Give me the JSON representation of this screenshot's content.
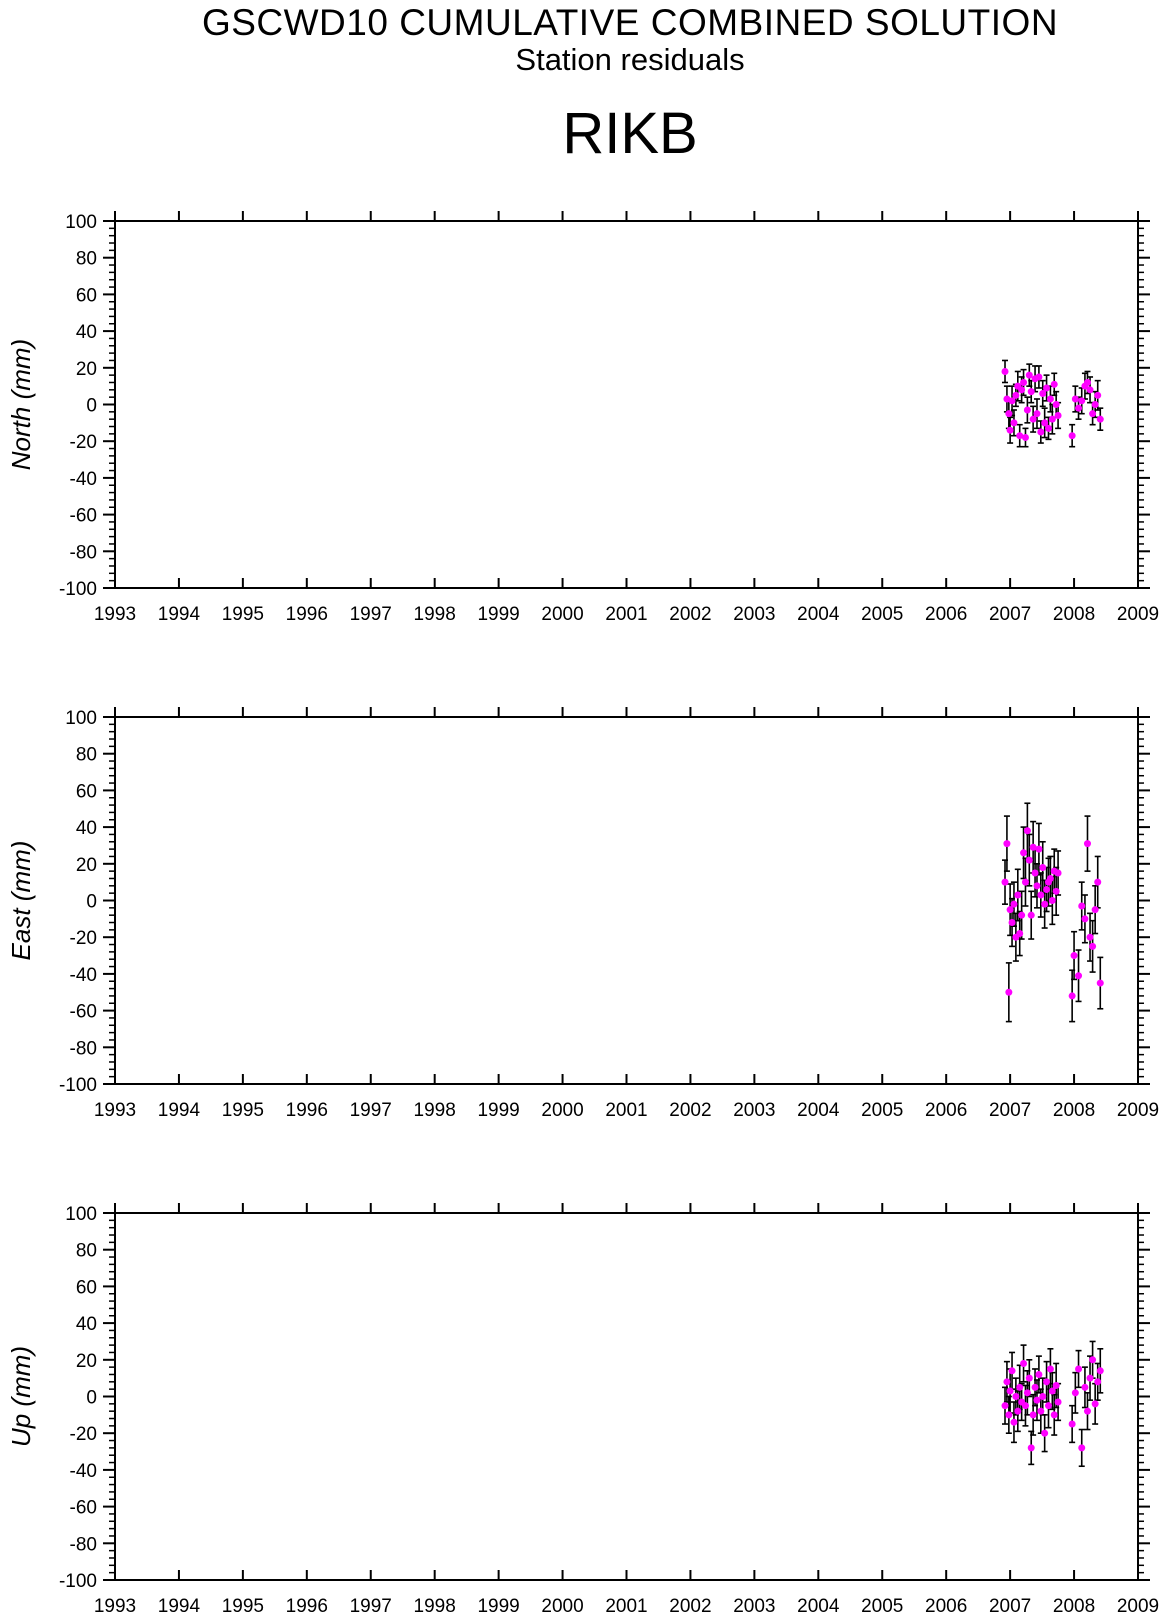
{
  "header": {
    "title": "GSCWD10 CUMULATIVE COMBINED SOLUTION",
    "subtitle": "Station residuals",
    "station": "RIKB"
  },
  "colors": {
    "point": "#ff00ff",
    "errorbar": "#000000",
    "axis": "#000000"
  },
  "chart_data": [
    {
      "type": "scatter",
      "ylabel": "North (mm)",
      "xlim": [
        1993,
        2009
      ],
      "ylim": [
        -100,
        100
      ],
      "x_ticks": [
        "1993",
        "1994",
        "1995",
        "1996",
        "1997",
        "1998",
        "1999",
        "2000",
        "2001",
        "2002",
        "2003",
        "2004",
        "2005",
        "2006",
        "2007",
        "2008",
        "2009"
      ],
      "y_ticks": [
        "100",
        "80",
        "60",
        "40",
        "20",
        "0",
        "-20",
        "-40",
        "-60",
        "-80",
        "-100"
      ],
      "points": [
        [
          2006.92,
          18,
          6
        ],
        [
          2006.95,
          3,
          7
        ],
        [
          2006.98,
          -5,
          8
        ],
        [
          2007.0,
          -14,
          7
        ],
        [
          2007.03,
          2,
          8
        ],
        [
          2007.06,
          -10,
          7
        ],
        [
          2007.09,
          5,
          6
        ],
        [
          2007.12,
          10,
          8
        ],
        [
          2007.15,
          -17,
          6
        ],
        [
          2007.18,
          8,
          7
        ],
        [
          2007.21,
          12,
          7
        ],
        [
          2007.24,
          -18,
          5
        ],
        [
          2007.27,
          -3,
          7
        ],
        [
          2007.3,
          16,
          6
        ],
        [
          2007.33,
          7,
          6
        ],
        [
          2007.36,
          -8,
          7
        ],
        [
          2007.39,
          14,
          7
        ],
        [
          2007.42,
          -5,
          8
        ],
        [
          2007.45,
          15,
          6
        ],
        [
          2007.48,
          -15,
          6
        ],
        [
          2007.51,
          6,
          7
        ],
        [
          2007.54,
          -10,
          8
        ],
        [
          2007.57,
          9,
          7
        ],
        [
          2007.6,
          -13,
          6
        ],
        [
          2007.63,
          3,
          7
        ],
        [
          2007.66,
          -8,
          8
        ],
        [
          2007.69,
          11,
          6
        ],
        [
          2007.72,
          0,
          7
        ],
        [
          2007.75,
          -6,
          7
        ],
        [
          2007.97,
          -17,
          6
        ],
        [
          2008.02,
          3,
          7
        ],
        [
          2008.07,
          -2,
          6
        ],
        [
          2008.12,
          2,
          7
        ],
        [
          2008.17,
          10,
          7
        ],
        [
          2008.21,
          12,
          6
        ],
        [
          2008.25,
          8,
          7
        ],
        [
          2008.29,
          -5,
          6
        ],
        [
          2008.33,
          0,
          7
        ],
        [
          2008.37,
          5,
          8
        ],
        [
          2008.41,
          -8,
          6
        ]
      ]
    },
    {
      "type": "scatter",
      "ylabel": "East (mm)",
      "xlim": [
        1993,
        2009
      ],
      "ylim": [
        -100,
        100
      ],
      "x_ticks": [
        "1993",
        "1994",
        "1995",
        "1996",
        "1997",
        "1998",
        "1999",
        "2000",
        "2001",
        "2002",
        "2003",
        "2004",
        "2005",
        "2006",
        "2007",
        "2008",
        "2009"
      ],
      "y_ticks": [
        "100",
        "80",
        "60",
        "40",
        "20",
        "0",
        "-20",
        "-40",
        "-60",
        "-80",
        "-100"
      ],
      "points": [
        [
          2006.92,
          10,
          12
        ],
        [
          2006.95,
          31,
          15
        ],
        [
          2006.98,
          -50,
          16
        ],
        [
          2007.0,
          -5,
          14
        ],
        [
          2007.03,
          -12,
          13
        ],
        [
          2007.06,
          -2,
          12
        ],
        [
          2007.09,
          -20,
          13
        ],
        [
          2007.12,
          3,
          14
        ],
        [
          2007.15,
          -18,
          12
        ],
        [
          2007.18,
          -8,
          13
        ],
        [
          2007.21,
          26,
          14
        ],
        [
          2007.24,
          10,
          13
        ],
        [
          2007.27,
          38,
          15
        ],
        [
          2007.3,
          22,
          14
        ],
        [
          2007.33,
          -8,
          13
        ],
        [
          2007.36,
          29,
          14
        ],
        [
          2007.39,
          15,
          13
        ],
        [
          2007.42,
          8,
          12
        ],
        [
          2007.45,
          28,
          14
        ],
        [
          2007.48,
          3,
          12
        ],
        [
          2007.51,
          18,
          14
        ],
        [
          2007.54,
          -2,
          13
        ],
        [
          2007.57,
          6,
          12
        ],
        [
          2007.6,
          10,
          13
        ],
        [
          2007.63,
          12,
          12
        ],
        [
          2007.66,
          0,
          13
        ],
        [
          2007.69,
          16,
          12
        ],
        [
          2007.72,
          5,
          13
        ],
        [
          2007.75,
          15,
          12
        ],
        [
          2007.97,
          -52,
          14
        ],
        [
          2008.0,
          -30,
          13
        ],
        [
          2008.07,
          -41,
          14
        ],
        [
          2008.12,
          -3,
          13
        ],
        [
          2008.17,
          -10,
          13
        ],
        [
          2008.21,
          31,
          15
        ],
        [
          2008.25,
          -20,
          13
        ],
        [
          2008.29,
          -25,
          14
        ],
        [
          2008.33,
          -5,
          13
        ],
        [
          2008.37,
          10,
          14
        ],
        [
          2008.41,
          -45,
          14
        ]
      ]
    },
    {
      "type": "scatter",
      "ylabel": "Up (mm)",
      "xlim": [
        1993,
        2009
      ],
      "ylim": [
        -100,
        100
      ],
      "x_ticks": [
        "1993",
        "1994",
        "1995",
        "1996",
        "1997",
        "1998",
        "1999",
        "2000",
        "2001",
        "2002",
        "2003",
        "2004",
        "2005",
        "2006",
        "2007",
        "2008",
        "2009"
      ],
      "y_ticks": [
        "100",
        "80",
        "60",
        "40",
        "20",
        "0",
        "-20",
        "-40",
        "-60",
        "-80",
        "-100"
      ],
      "points": [
        [
          2006.92,
          -5,
          10
        ],
        [
          2006.95,
          8,
          11
        ],
        [
          2006.98,
          -10,
          10
        ],
        [
          2007.0,
          3,
          12
        ],
        [
          2007.03,
          14,
          10
        ],
        [
          2007.06,
          -14,
          11
        ],
        [
          2007.09,
          0,
          10
        ],
        [
          2007.12,
          -8,
          11
        ],
        [
          2007.15,
          5,
          12
        ],
        [
          2007.18,
          -3,
          10
        ],
        [
          2007.21,
          18,
          10
        ],
        [
          2007.24,
          -5,
          11
        ],
        [
          2007.27,
          2,
          12
        ],
        [
          2007.3,
          10,
          10
        ],
        [
          2007.33,
          -28,
          9
        ],
        [
          2007.36,
          -10,
          11
        ],
        [
          2007.39,
          5,
          10
        ],
        [
          2007.42,
          -2,
          11
        ],
        [
          2007.45,
          12,
          10
        ],
        [
          2007.48,
          -8,
          12
        ],
        [
          2007.51,
          0,
          10
        ],
        [
          2007.54,
          -20,
          10
        ],
        [
          2007.57,
          8,
          11
        ],
        [
          2007.6,
          -5,
          12
        ],
        [
          2007.63,
          15,
          11
        ],
        [
          2007.66,
          3,
          10
        ],
        [
          2007.69,
          -10,
          11
        ],
        [
          2007.72,
          6,
          12
        ],
        [
          2007.75,
          -3,
          10
        ],
        [
          2007.97,
          -15,
          10
        ],
        [
          2008.02,
          2,
          11
        ],
        [
          2008.07,
          15,
          10
        ],
        [
          2008.12,
          -28,
          10
        ],
        [
          2008.17,
          5,
          11
        ],
        [
          2008.21,
          -8,
          10
        ],
        [
          2008.25,
          10,
          12
        ],
        [
          2008.29,
          20,
          10
        ],
        [
          2008.33,
          -4,
          11
        ],
        [
          2008.37,
          8,
          10
        ],
        [
          2008.41,
          14,
          12
        ]
      ]
    }
  ]
}
